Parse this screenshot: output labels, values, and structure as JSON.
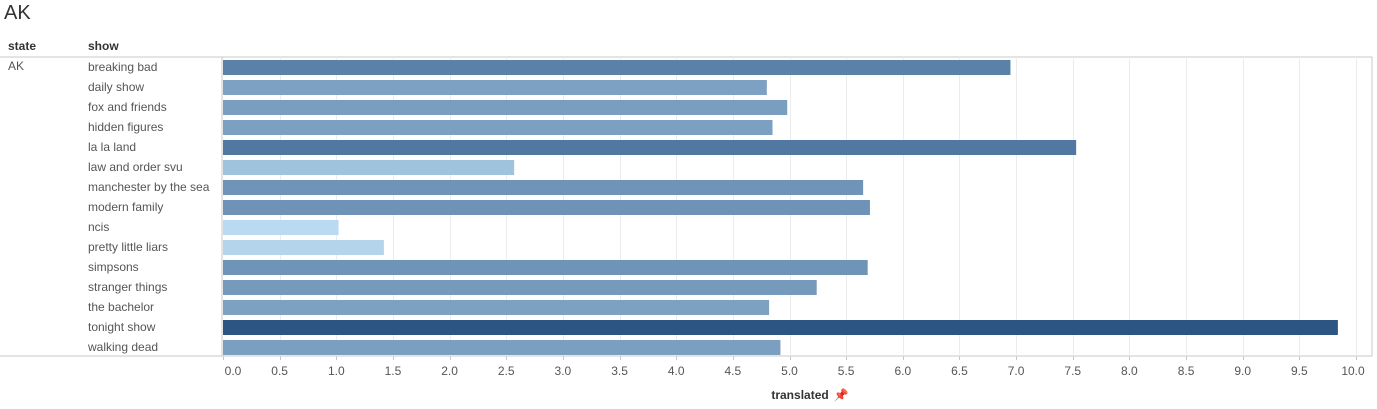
{
  "page_title": "AK",
  "headers": {
    "state": "state",
    "show": "show"
  },
  "state_value": "AK",
  "colors": {
    "grid": "#ececec",
    "border": "#c8c8c8",
    "bar_light": "#b9daf0",
    "bar_dark": "#2c5584"
  },
  "chart_data": {
    "type": "bar",
    "orientation": "horizontal",
    "categories": [
      "breaking bad",
      "daily show",
      "fox and friends",
      "hidden figures",
      "la la land",
      "law and order svu",
      "manchester by the sea",
      "modern family",
      "ncis",
      "pretty little liars",
      "simpsons",
      "stranger things",
      "the bachelor",
      "tonight show",
      "walking dead"
    ],
    "values": [
      6.95,
      4.8,
      4.98,
      4.85,
      7.53,
      2.57,
      5.65,
      5.71,
      1.02,
      1.42,
      5.69,
      5.24,
      4.82,
      9.84,
      4.92
    ],
    "xlim": [
      0,
      10
    ],
    "ticks": [
      "0.0",
      "0.5",
      "1.0",
      "1.5",
      "2.0",
      "2.5",
      "3.0",
      "3.5",
      "4.0",
      "4.5",
      "5.0",
      "5.5",
      "6.0",
      "6.5",
      "7.0",
      "7.5",
      "8.0",
      "8.5",
      "9.0",
      "9.5",
      "10.0"
    ],
    "xlabel": "translated",
    "ylabel": "show",
    "grid": true,
    "color_encodes_value": true
  }
}
